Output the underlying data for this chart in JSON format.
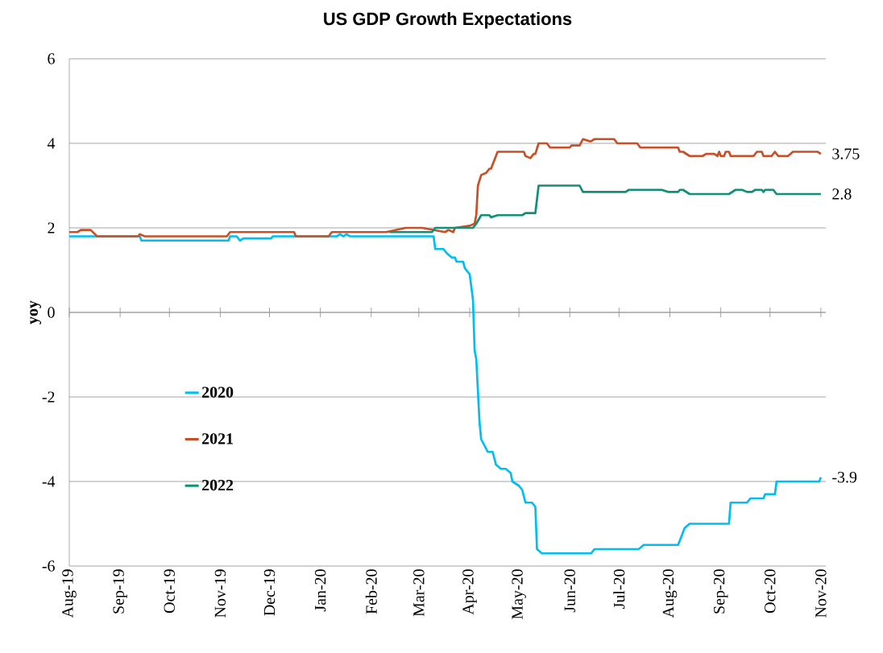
{
  "chart_data": {
    "type": "line",
    "title": "US GDP Growth Expectations",
    "ylabel": "yoy",
    "xlim": [
      "2019-08-01",
      "2020-11-04"
    ],
    "ylim": [
      -6,
      6
    ],
    "yticks": [
      -6,
      -4,
      -2,
      0,
      2,
      4,
      6
    ],
    "xticks": [
      {
        "value": "2019-08-01",
        "label": "Aug-19"
      },
      {
        "value": "2019-09-01",
        "label": "Sep-19"
      },
      {
        "value": "2019-10-01",
        "label": "Oct-19"
      },
      {
        "value": "2019-11-01",
        "label": "Nov-19"
      },
      {
        "value": "2019-12-01",
        "label": "Dec-19"
      },
      {
        "value": "2020-01-01",
        "label": "Jan-20"
      },
      {
        "value": "2020-02-01",
        "label": "Feb-20"
      },
      {
        "value": "2020-03-01",
        "label": "Mar-20"
      },
      {
        "value": "2020-04-01",
        "label": "Apr-20"
      },
      {
        "value": "2020-05-01",
        "label": "May-20"
      },
      {
        "value": "2020-06-01",
        "label": "Jun-20"
      },
      {
        "value": "2020-07-01",
        "label": "Jul-20"
      },
      {
        "value": "2020-08-01",
        "label": "Aug-20"
      },
      {
        "value": "2020-09-01",
        "label": "Sep-20"
      },
      {
        "value": "2020-10-01",
        "label": "Oct-20"
      },
      {
        "value": "2020-11-01",
        "label": "Nov-20"
      }
    ],
    "grid": "y",
    "legend": "bottom left",
    "marker": "none",
    "line_style": "solid",
    "series": [
      {
        "name": "2020",
        "color": "#00bff0",
        "x": [
          "2019-08-01",
          "2019-09-13",
          "2019-09-14",
          "2019-11-06",
          "2019-11-07",
          "2019-11-11",
          "2019-11-13",
          "2019-11-15",
          "2019-12-02",
          "2019-12-03",
          "2020-01-11",
          "2020-01-13",
          "2020-01-15",
          "2020-01-17",
          "2020-01-19",
          "2020-03-10",
          "2020-03-11",
          "2020-03-16",
          "2020-03-18",
          "2020-03-21",
          "2020-03-23",
          "2020-03-24",
          "2020-03-28",
          "2020-03-29",
          "2020-04-01",
          "2020-04-03",
          "2020-04-04",
          "2020-04-05",
          "2020-04-07",
          "2020-04-08",
          "2020-04-12",
          "2020-04-15",
          "2020-04-17",
          "2020-04-20",
          "2020-04-23",
          "2020-04-26",
          "2020-04-27",
          "2020-05-01",
          "2020-05-03",
          "2020-05-05",
          "2020-05-09",
          "2020-05-11",
          "2020-05-12",
          "2020-05-15",
          "2020-06-14",
          "2020-06-16",
          "2020-07-13",
          "2020-07-16",
          "2020-08-06",
          "2020-08-08",
          "2020-08-10",
          "2020-08-13",
          "2020-09-06",
          "2020-09-07",
          "2020-09-17",
          "2020-09-19",
          "2020-09-27",
          "2020-09-28",
          "2020-10-04",
          "2020-10-05",
          "2020-10-31",
          "2020-11-01"
        ],
        "values": [
          1.8,
          1.8,
          1.7,
          1.7,
          1.8,
          1.8,
          1.7,
          1.75,
          1.75,
          1.8,
          1.8,
          1.85,
          1.8,
          1.85,
          1.8,
          1.8,
          1.5,
          1.5,
          1.4,
          1.3,
          1.3,
          1.2,
          1.2,
          1.05,
          0.9,
          0.3,
          -0.9,
          -1.1,
          -2.6,
          -3.0,
          -3.3,
          -3.3,
          -3.6,
          -3.7,
          -3.7,
          -3.8,
          -4.0,
          -4.1,
          -4.2,
          -4.5,
          -4.5,
          -4.6,
          -5.6,
          -5.7,
          -5.7,
          -5.6,
          -5.6,
          -5.5,
          -5.5,
          -5.3,
          -5.1,
          -5.0,
          -5.0,
          -4.5,
          -4.5,
          -4.4,
          -4.4,
          -4.3,
          -4.3,
          -4.0,
          -4.0,
          -3.9
        ]
      },
      {
        "name": "2021",
        "color": "#c94f27",
        "x": [
          "2019-08-01",
          "2019-08-06",
          "2019-08-08",
          "2019-08-14",
          "2019-08-18",
          "2019-09-12",
          "2019-09-13",
          "2019-09-16",
          "2019-11-05",
          "2019-11-07",
          "2019-12-16",
          "2019-12-17",
          "2020-01-06",
          "2020-01-08",
          "2020-02-10",
          "2020-02-22",
          "2020-03-03",
          "2020-03-17",
          "2020-03-19",
          "2020-03-22",
          "2020-03-23",
          "2020-04-01",
          "2020-04-04",
          "2020-04-05",
          "2020-04-06",
          "2020-04-08",
          "2020-04-11",
          "2020-04-13",
          "2020-04-14",
          "2020-04-18",
          "2020-05-04",
          "2020-05-05",
          "2020-05-08",
          "2020-05-10",
          "2020-05-11",
          "2020-05-13",
          "2020-05-18",
          "2020-05-20",
          "2020-06-01",
          "2020-06-02",
          "2020-06-07",
          "2020-06-09",
          "2020-06-13",
          "2020-06-14",
          "2020-06-16",
          "2020-06-28",
          "2020-06-30",
          "2020-07-12",
          "2020-07-14",
          "2020-08-06",
          "2020-08-07",
          "2020-08-09",
          "2020-08-13",
          "2020-08-21",
          "2020-08-23",
          "2020-08-28",
          "2020-08-30",
          "2020-08-31",
          "2020-09-01",
          "2020-09-03",
          "2020-09-04",
          "2020-09-06",
          "2020-09-07",
          "2020-09-21",
          "2020-09-23",
          "2020-09-26",
          "2020-09-27",
          "2020-10-02",
          "2020-10-04",
          "2020-10-06",
          "2020-10-12",
          "2020-10-15",
          "2020-10-30",
          "2020-11-01"
        ],
        "values": [
          1.9,
          1.9,
          1.95,
          1.95,
          1.8,
          1.8,
          1.85,
          1.8,
          1.8,
          1.9,
          1.9,
          1.8,
          1.8,
          1.9,
          1.9,
          2.0,
          2.0,
          1.9,
          1.95,
          1.9,
          2.0,
          2.05,
          2.1,
          2.3,
          3.0,
          3.25,
          3.3,
          3.4,
          3.4,
          3.8,
          3.8,
          3.7,
          3.65,
          3.75,
          3.75,
          4.0,
          4.0,
          3.9,
          3.9,
          3.95,
          3.95,
          4.1,
          4.05,
          4.05,
          4.1,
          4.1,
          4.0,
          4.0,
          3.9,
          3.9,
          3.8,
          3.8,
          3.7,
          3.7,
          3.75,
          3.75,
          3.7,
          3.8,
          3.7,
          3.7,
          3.8,
          3.8,
          3.7,
          3.7,
          3.8,
          3.8,
          3.7,
          3.7,
          3.8,
          3.7,
          3.7,
          3.8,
          3.8,
          3.75
        ]
      },
      {
        "name": "2022",
        "color": "#0f9077",
        "x": [
          "2020-02-12",
          "2020-03-09",
          "2020-03-11",
          "2020-04-03",
          "2020-04-05",
          "2020-04-08",
          "2020-04-13",
          "2020-04-14",
          "2020-04-18",
          "2020-05-03",
          "2020-05-05",
          "2020-05-11",
          "2020-05-13",
          "2020-06-07",
          "2020-06-09",
          "2020-07-05",
          "2020-07-07",
          "2020-07-27",
          "2020-07-31",
          "2020-08-06",
          "2020-08-07",
          "2020-08-09",
          "2020-08-11",
          "2020-08-13",
          "2020-09-06",
          "2020-09-10",
          "2020-09-14",
          "2020-09-17",
          "2020-09-20",
          "2020-09-22",
          "2020-09-26",
          "2020-09-27",
          "2020-09-28",
          "2020-10-03",
          "2020-10-05",
          "2020-11-01"
        ],
        "values": [
          1.9,
          1.9,
          2.0,
          2.0,
          2.1,
          2.3,
          2.3,
          2.25,
          2.3,
          2.3,
          2.35,
          2.35,
          3.0,
          3.0,
          2.85,
          2.85,
          2.9,
          2.9,
          2.85,
          2.85,
          2.9,
          2.9,
          2.85,
          2.8,
          2.8,
          2.9,
          2.9,
          2.85,
          2.85,
          2.9,
          2.9,
          2.85,
          2.9,
          2.9,
          2.8,
          2.8
        ]
      }
    ],
    "annotations": [
      {
        "text": "3.75",
        "x": "2020-11-01",
        "y": 3.75
      },
      {
        "text": "2.8",
        "x": "2020-11-01",
        "y": 2.8
      },
      {
        "text": "-3.9",
        "x": "2020-11-01",
        "y": -3.9
      }
    ]
  }
}
